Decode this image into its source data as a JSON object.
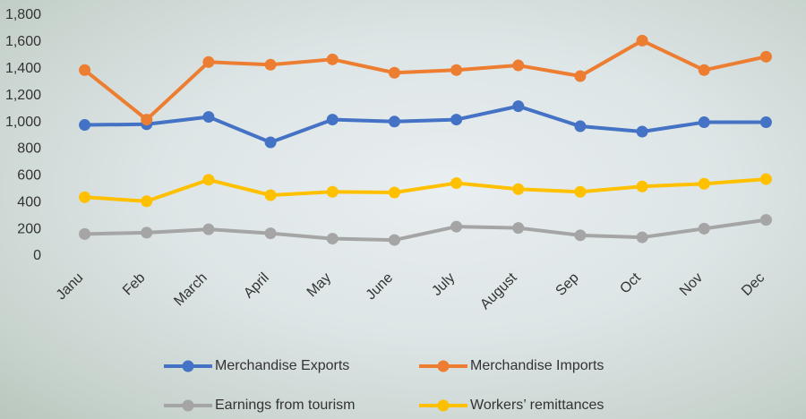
{
  "chart_data": {
    "type": "line",
    "categories": [
      "Janu",
      "Feb",
      "March",
      "April",
      "May",
      "June",
      "July",
      "August",
      "Sep",
      "Oct",
      "Nov",
      "Dec"
    ],
    "series": [
      {
        "name": "Merchandise Exports",
        "color": "#4472c4",
        "values": [
          980,
          985,
          1040,
          850,
          1020,
          1005,
          1020,
          1120,
          970,
          930,
          1000,
          1000
        ]
      },
      {
        "name": "Merchandise Imports",
        "color": "#ed7d31",
        "values": [
          1390,
          1020,
          1450,
          1430,
          1470,
          1370,
          1390,
          1425,
          1345,
          1610,
          1390,
          1490
        ]
      },
      {
        "name": "Earnings from tourism",
        "color": "#a5a5a5",
        "values": [
          165,
          175,
          200,
          170,
          130,
          120,
          220,
          210,
          155,
          140,
          205,
          270
        ]
      },
      {
        "name": "Workers’ remittances",
        "color": "#ffc000",
        "values": [
          440,
          410,
          570,
          455,
          480,
          475,
          545,
          500,
          480,
          520,
          540,
          575
        ]
      }
    ],
    "ylim": [
      0,
      1800
    ],
    "yticks": [
      0,
      200,
      400,
      600,
      800,
      {
        "value": 1000,
        "label": "1,000"
      },
      {
        "value": 1200,
        "label": "1,200"
      },
      {
        "value": 1400,
        "label": "1,400"
      },
      {
        "value": 1600,
        "label": "1,600"
      },
      {
        "value": 1800,
        "label": "1,800"
      }
    ],
    "grid": false,
    "legend": "bottom"
  }
}
